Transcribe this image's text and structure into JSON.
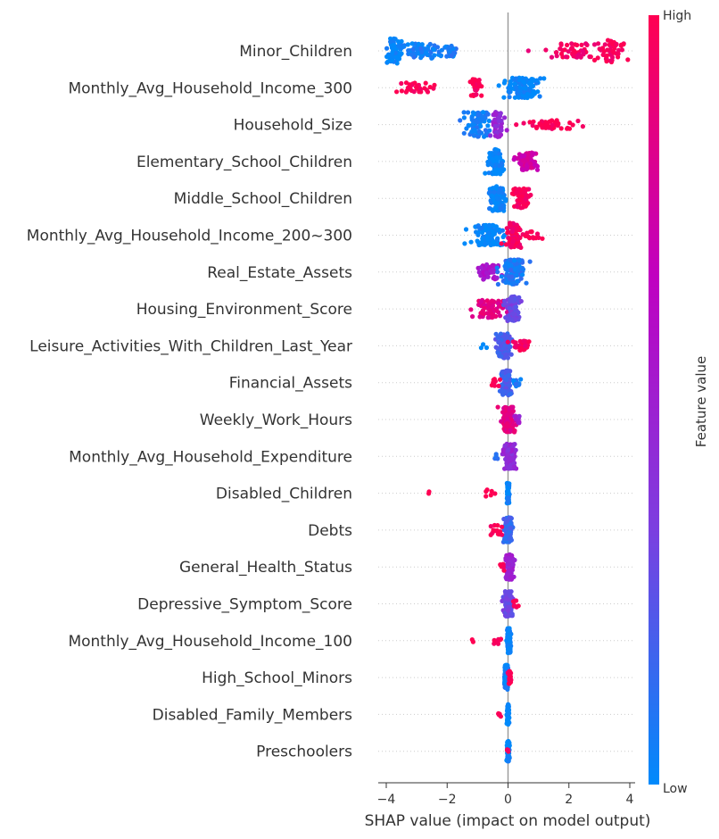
{
  "chart_data": {
    "type": "scatter",
    "subtype": "shap-beeswarm-summary",
    "xlabel": "SHAP value (impact on model output)",
    "xlim": [
      -4.2,
      4.1
    ],
    "x_ticks": [
      -4,
      -2,
      0,
      2,
      4
    ],
    "x_tick_labels": [
      "−4",
      "−2",
      "0",
      "2",
      "4"
    ],
    "grid": "horizontal dotted row guides",
    "colorbar": {
      "label": "Feature value",
      "high_label": "High",
      "low_label": "Low",
      "colors": [
        "#008afb",
        "#7b3fe0",
        "#c000c0",
        "#ff0052"
      ]
    },
    "features": [
      {
        "name": "Minor_Children",
        "clusters": [
          {
            "c": -3.7,
            "w": 0.25,
            "n": 60,
            "v": 0.0,
            "h": 1.0
          },
          {
            "c": -2.9,
            "w": 0.6,
            "n": 60,
            "v": 0.05,
            "h": 0.6
          },
          {
            "c": -2.0,
            "w": 0.35,
            "n": 25,
            "v": 0.05,
            "h": 0.5
          },
          {
            "c": 2.2,
            "w": 0.8,
            "n": 55,
            "v": 0.95,
            "h": 0.6
          },
          {
            "c": 3.4,
            "w": 0.35,
            "n": 45,
            "v": 0.97,
            "h": 0.9
          }
        ]
      },
      {
        "name": "Monthly_Avg_Household_Income_300",
        "clusters": [
          {
            "c": -3.0,
            "w": 0.6,
            "n": 30,
            "v": 1.0,
            "h": 0.4
          },
          {
            "c": -1.05,
            "w": 0.2,
            "n": 25,
            "v": 1.0,
            "h": 0.7
          },
          {
            "c": 0.5,
            "w": 0.55,
            "n": 120,
            "v": 0.0,
            "h": 0.8
          }
        ]
      },
      {
        "name": "Household_Size",
        "clusters": [
          {
            "c": -0.95,
            "w": 0.4,
            "n": 80,
            "v": 0.05,
            "h": 1.0
          },
          {
            "c": -0.35,
            "w": 0.18,
            "n": 50,
            "v": 0.45,
            "h": 1.0
          },
          {
            "c": 1.3,
            "w": 0.9,
            "n": 45,
            "v": 1.0,
            "h": 0.35
          }
        ]
      },
      {
        "name": "Elementary_School_Children",
        "clusters": [
          {
            "c": -0.4,
            "w": 0.22,
            "n": 110,
            "v": 0.0,
            "h": 1.0
          },
          {
            "c": 0.6,
            "w": 0.28,
            "n": 70,
            "v": 0.75,
            "h": 0.7
          }
        ]
      },
      {
        "name": "Middle_School_Children",
        "clusters": [
          {
            "c": -0.35,
            "w": 0.22,
            "n": 120,
            "v": 0.0,
            "h": 1.0
          },
          {
            "c": 0.45,
            "w": 0.25,
            "n": 70,
            "v": 0.97,
            "h": 0.8
          }
        ]
      },
      {
        "name": "Monthly_Avg_Household_Income_200~300",
        "clusters": [
          {
            "c": -0.6,
            "w": 0.5,
            "n": 110,
            "v": 0.0,
            "h": 0.8
          },
          {
            "c": 0.2,
            "w": 0.2,
            "n": 80,
            "v": 0.95,
            "h": 1.0
          },
          {
            "c": 0.75,
            "w": 0.25,
            "n": 15,
            "v": 1.0,
            "h": 0.3
          }
        ]
      },
      {
        "name": "Real_Estate_Assets",
        "clusters": [
          {
            "c": -0.65,
            "w": 0.3,
            "n": 50,
            "v": 0.55,
            "h": 0.6
          },
          {
            "c": 0.15,
            "w": 0.35,
            "n": 120,
            "v": 0.08,
            "h": 1.0
          }
        ]
      },
      {
        "name": "Housing_Environment_Score",
        "clusters": [
          {
            "c": -0.55,
            "w": 0.5,
            "n": 70,
            "v": 0.85,
            "h": 0.7
          },
          {
            "c": 0.15,
            "w": 0.18,
            "n": 110,
            "v": 0.3,
            "h": 1.0
          }
        ]
      },
      {
        "name": "Leisure_Activities_With_Children_Last_Year",
        "clusters": [
          {
            "c": -0.15,
            "w": 0.18,
            "n": 110,
            "v": 0.2,
            "h": 1.0
          },
          {
            "c": 0.45,
            "w": 0.25,
            "n": 35,
            "v": 0.97,
            "h": 0.4
          },
          {
            "c": -0.8,
            "w": 0.1,
            "n": 3,
            "v": 0.0,
            "h": 0.2
          }
        ]
      },
      {
        "name": "Financial_Assets",
        "clusters": [
          {
            "c": -0.05,
            "w": 0.15,
            "n": 110,
            "v": 0.2,
            "h": 1.0
          },
          {
            "c": -0.45,
            "w": 0.12,
            "n": 10,
            "v": 1.0,
            "h": 0.3
          },
          {
            "c": 0.3,
            "w": 0.12,
            "n": 15,
            "v": 0.05,
            "h": 0.3
          }
        ]
      },
      {
        "name": "Weekly_Work_Hours",
        "clusters": [
          {
            "c": 0.0,
            "w": 0.18,
            "n": 140,
            "v": 0.85,
            "h": 1.0
          },
          {
            "c": 0.3,
            "w": 0.1,
            "n": 10,
            "v": 0.5,
            "h": 0.3
          }
        ]
      },
      {
        "name": "Monthly_Avg_Household_Expenditure",
        "clusters": [
          {
            "c": 0.05,
            "w": 0.15,
            "n": 140,
            "v": 0.45,
            "h": 1.0
          },
          {
            "c": -0.4,
            "w": 0.08,
            "n": 5,
            "v": 0.1,
            "h": 0.2
          }
        ]
      },
      {
        "name": "Disabled_Children",
        "clusters": [
          {
            "c": 0.0,
            "w": 0.03,
            "n": 100,
            "v": 0.0,
            "h": 0.8
          },
          {
            "c": -0.7,
            "w": 0.15,
            "n": 6,
            "v": 1.0,
            "h": 0.3
          },
          {
            "c": -2.6,
            "w": 0.04,
            "n": 2,
            "v": 1.0,
            "h": 0.2
          }
        ]
      },
      {
        "name": "Debts",
        "clusters": [
          {
            "c": 0.0,
            "w": 0.12,
            "n": 140,
            "v": 0.15,
            "h": 1.0
          },
          {
            "c": -0.4,
            "w": 0.15,
            "n": 15,
            "v": 1.0,
            "h": 0.4
          }
        ]
      },
      {
        "name": "General_Health_Status",
        "clusters": [
          {
            "c": 0.05,
            "w": 0.12,
            "n": 130,
            "v": 0.5,
            "h": 1.0
          },
          {
            "c": -0.2,
            "w": 0.1,
            "n": 10,
            "v": 1.0,
            "h": 0.3
          }
        ]
      },
      {
        "name": "Depressive_Symptom_Score",
        "clusters": [
          {
            "c": 0.0,
            "w": 0.12,
            "n": 130,
            "v": 0.3,
            "h": 1.0
          },
          {
            "c": 0.2,
            "w": 0.1,
            "n": 8,
            "v": 1.0,
            "h": 0.3
          }
        ]
      },
      {
        "name": "Monthly_Avg_Household_Income_100",
        "clusters": [
          {
            "c": 0.03,
            "w": 0.05,
            "n": 120,
            "v": 0.0,
            "h": 1.0
          },
          {
            "c": -0.35,
            "w": 0.12,
            "n": 10,
            "v": 1.0,
            "h": 0.3
          },
          {
            "c": -1.15,
            "w": 0.04,
            "n": 2,
            "v": 1.0,
            "h": 0.1
          }
        ]
      },
      {
        "name": "High_School_Minors",
        "clusters": [
          {
            "c": -0.05,
            "w": 0.06,
            "n": 110,
            "v": 0.05,
            "h": 1.0
          },
          {
            "c": 0.05,
            "w": 0.08,
            "n": 20,
            "v": 1.0,
            "h": 0.5
          }
        ]
      },
      {
        "name": "Disabled_Family_Members",
        "clusters": [
          {
            "c": 0.0,
            "w": 0.03,
            "n": 100,
            "v": 0.0,
            "h": 0.8
          },
          {
            "c": -0.3,
            "w": 0.1,
            "n": 5,
            "v": 1.0,
            "h": 0.2
          }
        ]
      },
      {
        "name": "Preschoolers",
        "clusters": [
          {
            "c": 0.0,
            "w": 0.03,
            "n": 100,
            "v": 0.0,
            "h": 0.8
          },
          {
            "c": 0.0,
            "w": 0.03,
            "n": 6,
            "v": 1.0,
            "h": 0.2
          }
        ]
      }
    ]
  }
}
